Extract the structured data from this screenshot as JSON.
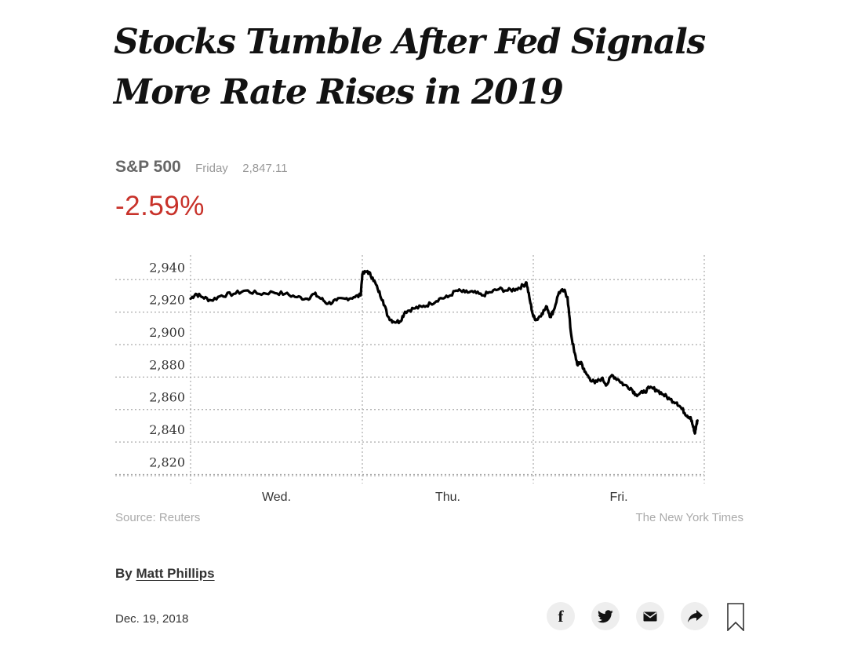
{
  "headline": "Stocks Tumble After Fed Signals More Rate Rises in 2019",
  "ticker": {
    "name": "S&P 500",
    "day": "Friday",
    "value": "2,847.11",
    "change": "-2.59%",
    "change_color": "#c8322a"
  },
  "chart_data": {
    "type": "line",
    "title": "S&P 500",
    "xlabel": "",
    "ylabel": "",
    "ylim": [
      2812,
      2944
    ],
    "yticks": [
      2940,
      2920,
      2900,
      2880,
      2860,
      2840,
      2820
    ],
    "ytick_labels": [
      "2,940",
      "2,920",
      "2,900",
      "2,880",
      "2,860",
      "2,840",
      "2,820"
    ],
    "xlim": [
      0,
      3
    ],
    "day_labels": [
      "Wed.",
      "Thu.",
      "Fri."
    ],
    "grid": true,
    "series": [
      {
        "name": "S&P 500",
        "color": "#000000",
        "points": [
          [
            0.0,
            2921
          ],
          [
            0.03,
            2924
          ],
          [
            0.07,
            2922
          ],
          [
            0.12,
            2920
          ],
          [
            0.18,
            2923
          ],
          [
            0.25,
            2924
          ],
          [
            0.32,
            2926
          ],
          [
            0.4,
            2924
          ],
          [
            0.48,
            2925
          ],
          [
            0.55,
            2924
          ],
          [
            0.62,
            2922
          ],
          [
            0.68,
            2921
          ],
          [
            0.72,
            2924
          ],
          [
            0.76,
            2921
          ],
          [
            0.8,
            2918
          ],
          [
            0.85,
            2920
          ],
          [
            0.9,
            2921
          ],
          [
            0.95,
            2922
          ],
          [
            0.99,
            2923
          ],
          [
            1.0,
            2936
          ],
          [
            1.03,
            2938
          ],
          [
            1.06,
            2934
          ],
          [
            1.09,
            2927
          ],
          [
            1.12,
            2920
          ],
          [
            1.15,
            2910
          ],
          [
            1.18,
            2907
          ],
          [
            1.22,
            2907
          ],
          [
            1.25,
            2913
          ],
          [
            1.3,
            2915
          ],
          [
            1.35,
            2916
          ],
          [
            1.4,
            2918
          ],
          [
            1.45,
            2921
          ],
          [
            1.5,
            2922
          ],
          [
            1.55,
            2926
          ],
          [
            1.6,
            2925
          ],
          [
            1.65,
            2925
          ],
          [
            1.7,
            2923
          ],
          [
            1.75,
            2925
          ],
          [
            1.8,
            2927
          ],
          [
            1.85,
            2926
          ],
          [
            1.9,
            2927
          ],
          [
            1.94,
            2929
          ],
          [
            1.96,
            2931
          ],
          [
            1.98,
            2920
          ],
          [
            2.0,
            2910
          ],
          [
            2.02,
            2908
          ],
          [
            2.05,
            2912
          ],
          [
            2.08,
            2916
          ],
          [
            2.1,
            2910
          ],
          [
            2.12,
            2914
          ],
          [
            2.15,
            2925
          ],
          [
            2.18,
            2926
          ],
          [
            2.2,
            2922
          ],
          [
            2.22,
            2900
          ],
          [
            2.24,
            2888
          ],
          [
            2.26,
            2880
          ],
          [
            2.28,
            2882
          ],
          [
            2.3,
            2876
          ],
          [
            2.33,
            2872
          ],
          [
            2.36,
            2869
          ],
          [
            2.4,
            2872
          ],
          [
            2.43,
            2868
          ],
          [
            2.46,
            2874
          ],
          [
            2.5,
            2871
          ],
          [
            2.53,
            2868
          ],
          [
            2.57,
            2866
          ],
          [
            2.6,
            2862
          ],
          [
            2.64,
            2863
          ],
          [
            2.68,
            2866
          ],
          [
            2.72,
            2865
          ],
          [
            2.76,
            2862
          ],
          [
            2.8,
            2859
          ],
          [
            2.84,
            2857
          ],
          [
            2.87,
            2853
          ],
          [
            2.9,
            2849
          ],
          [
            2.92,
            2848
          ],
          [
            2.935,
            2842
          ],
          [
            2.945,
            2838
          ],
          [
            2.955,
            2844
          ],
          [
            2.96,
            2846
          ]
        ]
      }
    ]
  },
  "source": "Source: Reuters",
  "credit": "The New York Times",
  "byline": {
    "prefix": "By ",
    "author": "Matt Phillips"
  },
  "date": "Dec. 19, 2018",
  "share": {
    "facebook_glyph": "f",
    "icons": [
      "facebook-icon",
      "twitter-icon",
      "email-icon",
      "share-icon",
      "bookmark-icon"
    ]
  }
}
